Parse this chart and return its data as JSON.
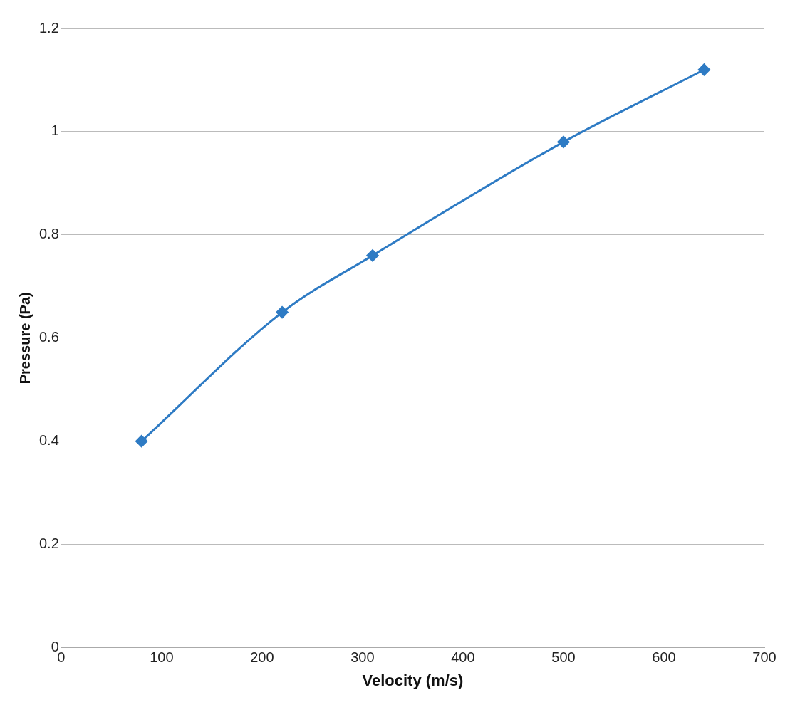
{
  "chart_data": {
    "type": "line",
    "xlabel": "Velocity (m/s)",
    "ylabel": "Pressure (Pa)",
    "x": [
      80,
      220,
      310,
      500,
      640
    ],
    "series": [
      {
        "color": "#2e7bc4",
        "values": [
          0.4,
          0.65,
          0.76,
          0.98,
          1.12
        ]
      }
    ],
    "xlim": [
      0,
      700
    ],
    "xticks": [
      0,
      100,
      200,
      300,
      400,
      500,
      600,
      700
    ],
    "ylim": [
      0,
      1.2
    ],
    "yticks": [
      0,
      0.2,
      0.4,
      0.6,
      0.8,
      1,
      1.2
    ],
    "grid": "y",
    "legend": false,
    "marker": "diamond",
    "line_style": "solid"
  }
}
